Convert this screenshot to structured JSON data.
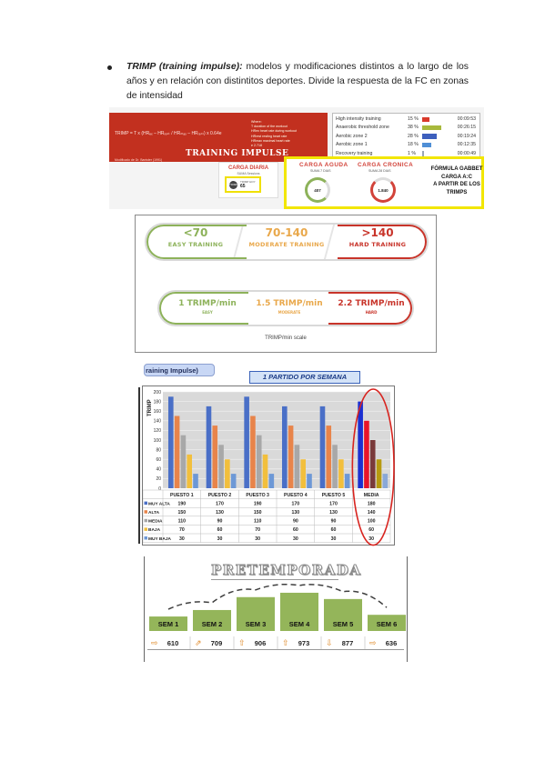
{
  "intro": {
    "term": "TRIMP (training impulse):",
    "text": " modelos y modificaciones distintos a lo largo de los años y en relación con distintitos deportes. Divide la respuesta de la FC en zonas de intensidad"
  },
  "impulse_panel": {
    "formula": "TRIMP = T x (HRₑₓ – HRᵣₑₛₜ / HRₘₐₓ – HRᵣₑₛₜ) x 0.64e",
    "where_lines": [
      "Where:",
      "T     duration of the workout",
      "HRex  heart rate during workout",
      "HRrest  resting heart rate",
      "HRmax  maximal heart rate",
      "e     2.718"
    ],
    "title": "TRAINING IMPULSE",
    "modified": "Modificado de Dr. Banister (1991)",
    "zones": [
      {
        "name": "High intensity training",
        "pct": "15 %",
        "time": "00:09:53",
        "color": "#d93a2b",
        "fraction": 0.15
      },
      {
        "name": "Anaerobic threshold zone",
        "pct": "38 %",
        "time": "00:26:15",
        "color": "#a8b93c",
        "fraction": 0.38
      },
      {
        "name": "Aerobic zone 2",
        "pct": "28 %",
        "time": "00:19:24",
        "color": "#3d5fbd",
        "fraction": 0.28
      },
      {
        "name": "Aerobic zone 1",
        "pct": "18 %",
        "time": "00:12:35",
        "color": "#4f8fd6",
        "fraction": 0.18
      },
      {
        "name": "Recovery training",
        "pct": "1 %",
        "time": "00:00:49",
        "color": "#9aa6b5",
        "fraction": 0.01
      }
    ],
    "carga_diaria": {
      "title": "CARGA DIARIA",
      "sub": "SUMA Sessions",
      "icon": "TRIMP",
      "label": "TRIMP HOY",
      "value": "65"
    },
    "carga_aguda": {
      "title": "CARGA AGUDA",
      "sub": "SUMA 7 DIAS",
      "value": "407",
      "color": "#d2433a"
    },
    "carga_cronica": {
      "title": "CARGA CRONICA",
      "sub": "SUMA 28 DIAS",
      "value": "1.840",
      "color": "#d2433a"
    },
    "gabbet": [
      "FÓRMULA GABBET",
      "CARGA A:C",
      "A PARTIR DE LOS",
      "TRIMPS"
    ]
  },
  "intensity_scale": {
    "top": [
      {
        "value": "<70",
        "label": "EASY TRAINING",
        "color": "#8db25a"
      },
      {
        "value": "70-140",
        "label": "MODERATE TRAINING",
        "color": "#e9a84b"
      },
      {
        "value": ">140",
        "label": "HARD TRAINING",
        "color": "#c8342a"
      }
    ],
    "bottom": [
      {
        "value": "1 TRIMP/min",
        "label": "EASY",
        "color": "#8db25a"
      },
      {
        "value": "1.5 TRIMP/min",
        "label": "MODERATE",
        "color": "#e9a84b"
      },
      {
        "value": "2.2 TRIMP/min",
        "label": "HARD",
        "color": "#c8342a"
      }
    ],
    "caption": "TRIMP/min scale"
  },
  "match_chart": {
    "pill": "raining Impulse)",
    "title": "1 PARTIDO POR SEMANA",
    "ylabel": "TRIMP"
  },
  "chart_data": {
    "type": "bar",
    "title": "1 PARTIDO POR SEMANA",
    "ylabel": "TRIMP",
    "ylim": [
      0,
      200
    ],
    "yticks": [
      0,
      20,
      40,
      60,
      80,
      100,
      120,
      140,
      160,
      180,
      200
    ],
    "categories": [
      "PUESTO 1",
      "PUESTO 2",
      "PUESTO 3",
      "PUESTO 4",
      "PUESTO 5",
      "MEDIA"
    ],
    "series": [
      {
        "name": "MUY ALTA",
        "color": "#4a6fc7",
        "values": [
          190,
          170,
          190,
          170,
          170,
          180
        ]
      },
      {
        "name": "ALTA",
        "color": "#e8844a",
        "values": [
          150,
          130,
          150,
          130,
          130,
          140
        ]
      },
      {
        "name": "MEDIA",
        "color": "#a8a8a8",
        "values": [
          110,
          90,
          110,
          90,
          90,
          100
        ]
      },
      {
        "name": "BAJA",
        "color": "#f2bf3c",
        "values": [
          70,
          60,
          70,
          60,
          60,
          60
        ]
      },
      {
        "name": "MUY BAJA",
        "color": "#6d98d6",
        "values": [
          30,
          30,
          30,
          30,
          30,
          30
        ]
      }
    ],
    "highlight_series_colors_media": [
      "#1b2fd1",
      "#e8142a",
      "#7a3a3a",
      "#b79a10",
      "#8aa8d8"
    ],
    "grid": true,
    "legend": "table-below"
  },
  "pretemporada": {
    "title": "PRETEMPORADA",
    "weeks": [
      {
        "label": "SEM 1",
        "value": "610",
        "arrow": "⇨",
        "level": 610
      },
      {
        "label": "SEM 2",
        "value": "709",
        "arrow": "⇗",
        "level": 709
      },
      {
        "label": "SEM 3",
        "value": "906",
        "arrow": "⇧",
        "level": 906
      },
      {
        "label": "SEM 4",
        "value": "973",
        "arrow": "⇧",
        "level": 973
      },
      {
        "label": "SEM 5",
        "value": "877",
        "arrow": "⇩",
        "level": 877
      },
      {
        "label": "SEM 6",
        "value": "636",
        "arrow": "⇨",
        "level": 636
      }
    ]
  }
}
